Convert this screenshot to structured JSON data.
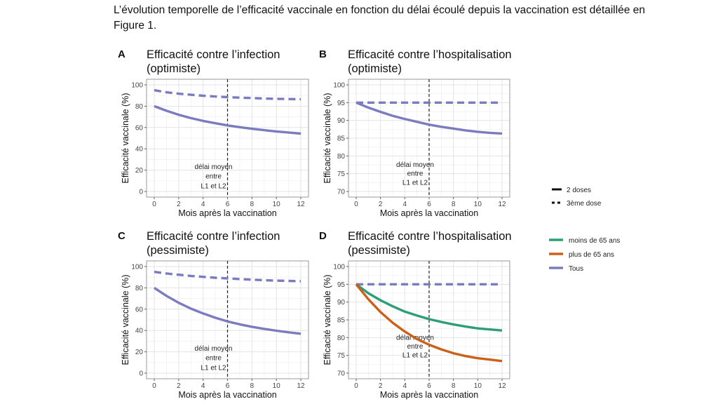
{
  "intro_text": "L’évolution temporelle de l’efficacité vaccinale en fonction du délai écoulé depuis la vaccination est détaillée en Figure 1.",
  "colors": {
    "tous": "#7b7bbf",
    "moins65": "#2e9e78",
    "plus65": "#cc6018",
    "grid": "#e3e3e3",
    "panel_border": "#9a9a9a",
    "vline": "#222222"
  },
  "legend_linetype": {
    "items": [
      {
        "label": "2 doses",
        "style": "solid"
      },
      {
        "label": "3ème dose",
        "style": "dashed"
      }
    ]
  },
  "legend_color": {
    "items": [
      {
        "label": "moins de 65 ans",
        "color": "#2e9e78"
      },
      {
        "label": "plus de 65 ans",
        "color": "#cc6018"
      },
      {
        "label": "Tous",
        "color": "#7b7bbf"
      }
    ]
  },
  "chart_data": [
    {
      "type": "line",
      "letter": "A",
      "title_line1": "Efficacité contre l’infection",
      "title_line2": "(optimiste)",
      "xlabel": "Mois après la vaccination",
      "ylabel": "Efficacité vaccinale (%)",
      "xlim": [
        0,
        12
      ],
      "ylim": [
        0,
        100
      ],
      "xticks": [
        0,
        2,
        4,
        6,
        8,
        10,
        12
      ],
      "yticks": [
        0,
        20,
        40,
        60,
        80,
        100
      ],
      "vline_x": 6,
      "annotation": [
        "délai moyen",
        "entre",
        "L1 et L2"
      ],
      "annotation_y": [
        23,
        14,
        5
      ],
      "x": [
        0,
        1,
        2,
        3,
        4,
        5,
        6,
        7,
        8,
        9,
        10,
        11,
        12
      ],
      "series": [
        {
          "linetype": "3ème dose",
          "group": "Tous",
          "values": [
            95,
            93,
            91.7,
            90.7,
            89.8,
            89.1,
            88.5,
            88,
            87.6,
            87.2,
            86.9,
            86.7,
            86.5
          ]
        },
        {
          "linetype": "2 doses",
          "group": "Tous",
          "values": [
            80,
            75.7,
            72,
            68.8,
            66.2,
            64,
            62,
            60.3,
            58.8,
            57.5,
            56.3,
            55.3,
            54.3
          ]
        }
      ]
    },
    {
      "type": "line",
      "letter": "B",
      "title_line1": "Efficacité contre l’hospitalisation",
      "title_line2": "(optimiste)",
      "xlabel": "Mois après la vaccination",
      "ylabel": "Efficacité vaccinale (%)",
      "xlim": [
        0,
        12
      ],
      "ylim": [
        70,
        100
      ],
      "xticks": [
        0,
        2,
        4,
        6,
        8,
        10,
        12
      ],
      "yticks": [
        70,
        75,
        80,
        85,
        90,
        95,
        100
      ],
      "vline_x": 6,
      "annotation": [
        "délai moyen",
        "entre",
        "L1 et L2"
      ],
      "annotation_y": [
        77.5,
        75,
        72.5
      ],
      "x": [
        0,
        1,
        2,
        3,
        4,
        5,
        6,
        7,
        8,
        9,
        10,
        11,
        12
      ],
      "series": [
        {
          "linetype": "3ème dose",
          "group": "Tous",
          "values": [
            95,
            95,
            95,
            95,
            95,
            95,
            95,
            95,
            95,
            95,
            95,
            95,
            95
          ]
        },
        {
          "linetype": "2 doses",
          "group": "Tous",
          "values": [
            95,
            93.6,
            92.4,
            91.3,
            90.4,
            89.6,
            88.8,
            88.2,
            87.7,
            87.2,
            86.8,
            86.5,
            86.3
          ]
        }
      ]
    },
    {
      "type": "line",
      "letter": "C",
      "title_line1": "Efficacité contre l’infection",
      "title_line2": "(pessimiste)",
      "xlabel": "Mois après la vaccination",
      "ylabel": "Efficacité vaccinale (%)",
      "xlim": [
        0,
        12
      ],
      "ylim": [
        0,
        100
      ],
      "xticks": [
        0,
        2,
        4,
        6,
        8,
        10,
        12
      ],
      "yticks": [
        0,
        20,
        40,
        60,
        80,
        100
      ],
      "vline_x": 6,
      "annotation": [
        "délai moyen",
        "entre",
        "L1 et L2"
      ],
      "annotation_y": [
        23,
        14,
        5
      ],
      "x": [
        0,
        1,
        2,
        3,
        4,
        5,
        6,
        7,
        8,
        9,
        10,
        11,
        12
      ],
      "series": [
        {
          "linetype": "3ème dose",
          "group": "Tous",
          "values": [
            95,
            93.5,
            92.3,
            91.2,
            90.3,
            89.5,
            88.8,
            88.2,
            87.7,
            87.2,
            86.8,
            86.5,
            86.2
          ]
        },
        {
          "linetype": "2 doses",
          "group": "Tous",
          "values": [
            80,
            72.5,
            66,
            60.5,
            56,
            52,
            48.5,
            45.8,
            43.5,
            41.5,
            39.8,
            38.3,
            37
          ]
        }
      ]
    },
    {
      "type": "line",
      "letter": "D",
      "title_line1": "Efficacité contre l’hospitalisation",
      "title_line2": "(pessimiste)",
      "xlabel": "Mois après la vaccination",
      "ylabel": "Efficacité vaccinale (%)",
      "xlim": [
        0,
        12
      ],
      "ylim": [
        70,
        100
      ],
      "xticks": [
        0,
        2,
        4,
        6,
        8,
        10,
        12
      ],
      "yticks": [
        70,
        75,
        80,
        85,
        90,
        95,
        100
      ],
      "vline_x": 6,
      "annotation": [
        "délai moyen",
        "entre",
        "L1 et L2"
      ],
      "annotation_y": [
        80,
        77.5,
        75
      ],
      "x": [
        0,
        1,
        2,
        3,
        4,
        5,
        6,
        7,
        8,
        9,
        10,
        11,
        12
      ],
      "series": [
        {
          "linetype": "3ème dose",
          "group": "Tous",
          "values": [
            95,
            95,
            95,
            95,
            95,
            95,
            95,
            95,
            95,
            95,
            95,
            95,
            95
          ]
        },
        {
          "linetype": "2 doses",
          "group": "moins de 65 ans",
          "values": [
            95,
            92.5,
            90.5,
            88.8,
            87.3,
            86.2,
            85.2,
            84.4,
            83.7,
            83.1,
            82.6,
            82.3,
            82
          ]
        },
        {
          "linetype": "2 doses",
          "group": "plus de 65 ans",
          "values": [
            95,
            90.8,
            87.2,
            84.2,
            81.7,
            79.6,
            78,
            76.7,
            75.6,
            74.8,
            74.2,
            73.8,
            73.4
          ]
        }
      ]
    }
  ]
}
